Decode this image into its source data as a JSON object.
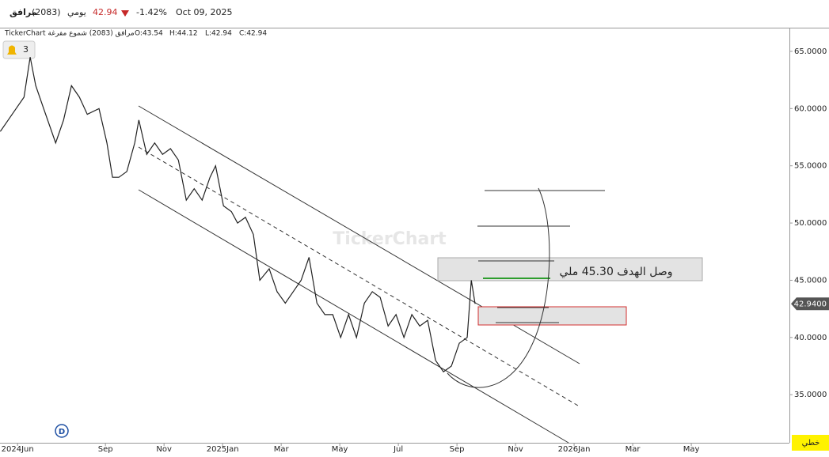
{
  "header": {
    "name": "مرافق",
    "code": "(2083)",
    "period": "يومي",
    "price": "42.94",
    "change": "-1.42%",
    "date": "Oct 09, 2025"
  },
  "info_line": {
    "title": "TickerChart مرافق (2083) شموع مفرغة",
    "open": "O:43.54",
    "high": "H:44.12",
    "low": "L:42.94",
    "close": "C:42.94"
  },
  "alerts": "3",
  "watermark": "TickerChart",
  "chart_style": "خطي",
  "event_marker": "D",
  "chart_data": {
    "type": "line",
    "x": [
      -0.59,
      -0.32,
      -0.05,
      0.22,
      0.43,
      0.62,
      0.89,
      1.3,
      1.57,
      1.84,
      2.11,
      2.38,
      2.78,
      3.05,
      3.24,
      3.46,
      3.73,
      4.0,
      4.14,
      4.41,
      4.68,
      4.95,
      5.22,
      5.49,
      5.76,
      6.03,
      6.3,
      6.57,
      6.76,
      7.03,
      7.3,
      7.51,
      7.78,
      8.05,
      8.27,
      8.59,
      8.86,
      9.14,
      9.41,
      9.68,
      9.95,
      10.22,
      10.49,
      10.76,
      11.03,
      11.3,
      11.57,
      11.84,
      12.11,
      12.38,
      12.65,
      12.92,
      13.19,
      13.46,
      13.73,
      14.0,
      14.27,
      14.54,
      14.81,
      15.08,
      15.35,
      15.49,
      15.62
    ],
    "series": [
      {
        "name": "مرافق",
        "color": "#222222",
        "values": [
          58,
          59,
          60,
          61,
          64.5,
          62,
          60,
          57,
          59,
          62,
          61,
          59.5,
          60,
          57,
          54,
          54,
          54.5,
          57,
          59,
          56,
          57,
          56,
          56.5,
          55.5,
          52,
          53,
          52,
          54,
          55,
          51.5,
          51,
          50,
          50.5,
          49,
          45,
          46,
          44,
          43,
          44,
          45,
          47,
          43,
          42,
          42,
          40,
          42,
          40,
          43,
          44,
          43.5,
          41,
          42,
          40,
          42,
          41,
          41.5,
          38,
          37,
          37.5,
          39.5,
          40,
          45,
          42.94
        ]
      }
    ],
    "xlim": [
      -0.6,
      26.35
    ],
    "xticks": [
      {
        "value": 0,
        "label": "2024Jun"
      },
      {
        "value": 3,
        "label": "Sep"
      },
      {
        "value": 5,
        "label": "Nov"
      },
      {
        "value": 7,
        "label": "2025Jan"
      },
      {
        "value": 9,
        "label": "Mar"
      },
      {
        "value": 11,
        "label": "May"
      },
      {
        "value": 13,
        "label": "Jul"
      },
      {
        "value": 15,
        "label": "Sep"
      },
      {
        "value": 17,
        "label": "Nov"
      },
      {
        "value": 19,
        "label": "2026Jan"
      },
      {
        "value": 21,
        "label": "Mar"
      },
      {
        "value": 23,
        "label": "May"
      }
    ],
    "ylim": [
      30.8,
      67.0
    ],
    "yticks": [
      {
        "value": 35,
        "label": "35.0000"
      },
      {
        "value": 40,
        "label": "40.0000"
      },
      {
        "value": 45,
        "label": "45.0000"
      },
      {
        "value": 50,
        "label": "50.0000"
      },
      {
        "value": 55,
        "label": "55.0000"
      },
      {
        "value": 60,
        "label": "60.0000"
      },
      {
        "value": 65,
        "label": "65.0000"
      }
    ],
    "last_price": {
      "value": 42.94,
      "label": "42.9400"
    },
    "annotation": "وصل الهدف 45.30 ملي"
  }
}
